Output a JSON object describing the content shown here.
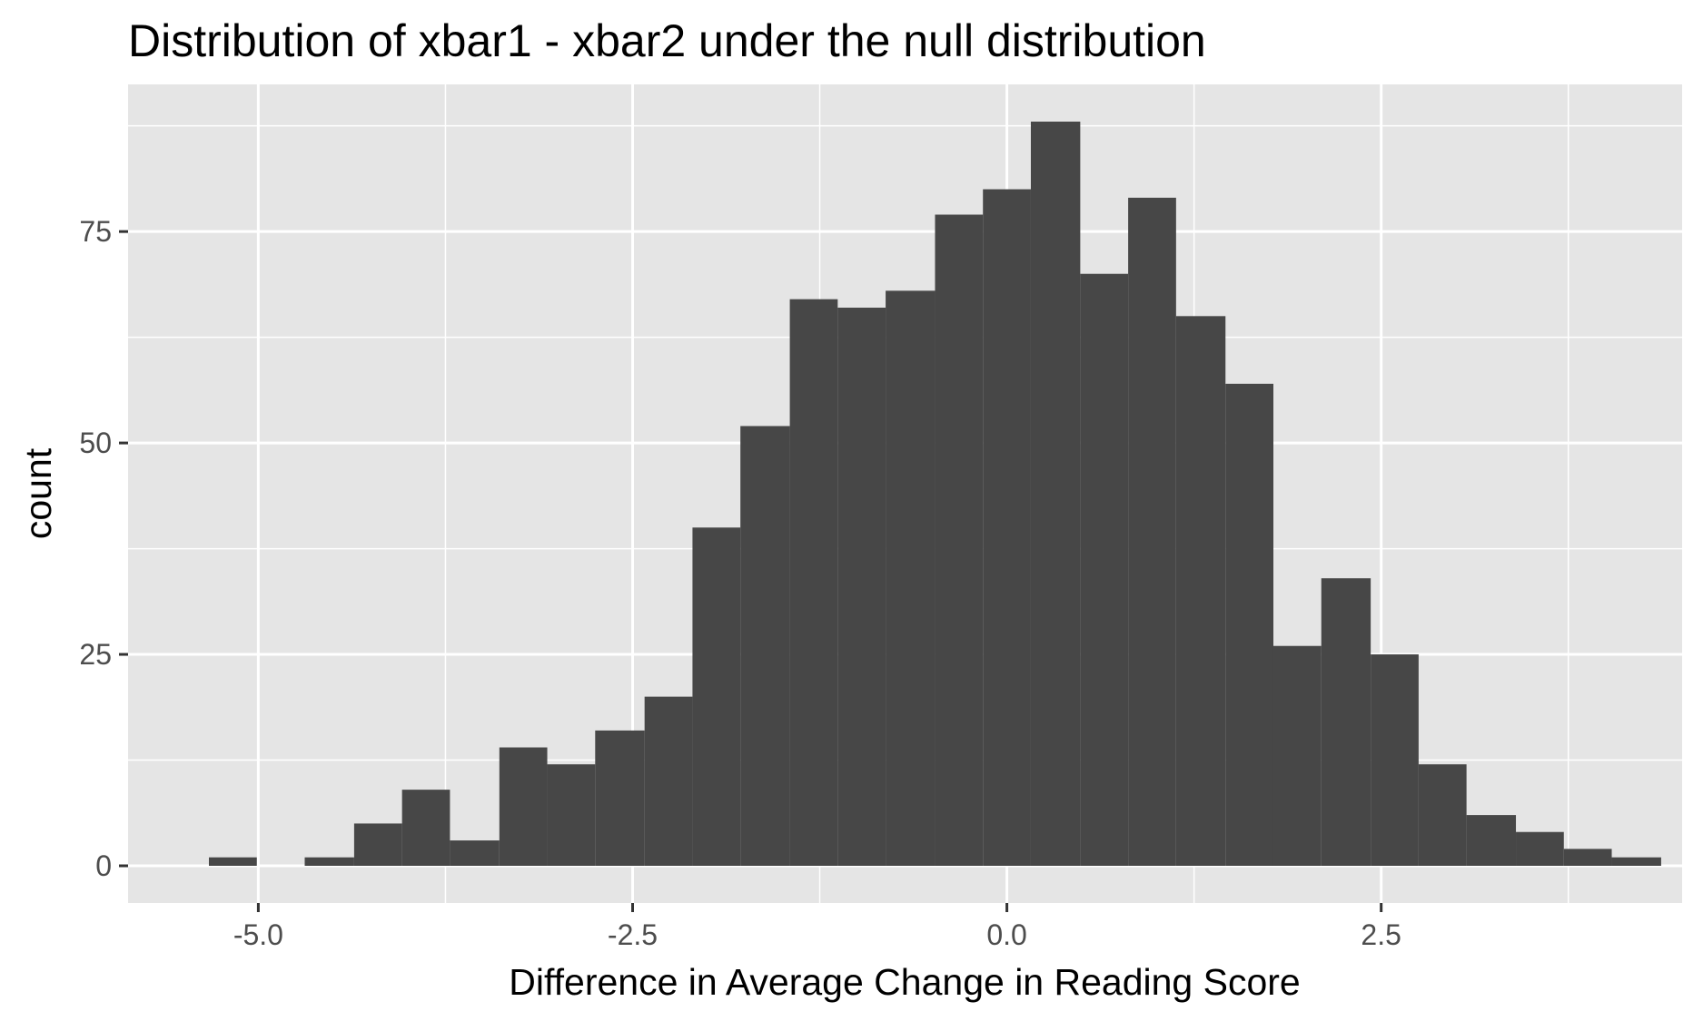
{
  "chart_data": {
    "type": "bar",
    "subtype": "histogram",
    "title": "Distribution of xbar1 - xbar2 under the null distribution",
    "xlabel": "Difference in Average Change in Reading Score",
    "ylabel": "count",
    "xlim": [
      -5.87,
      4.51
    ],
    "ylim": [
      -4.4,
      92.4
    ],
    "x_ticks": [
      -5.0,
      -2.5,
      0.0,
      2.5
    ],
    "x_tick_labels": [
      "-5.0",
      "-2.5",
      "0.0",
      "2.5"
    ],
    "y_ticks": [
      0,
      25,
      50,
      75
    ],
    "y_tick_labels": [
      "0",
      "25",
      "50",
      "75"
    ],
    "grid": true,
    "panel_background": "#e5e5e5",
    "grid_color": "#ffffff",
    "bar_color": "#474747",
    "bin_width": 0.323,
    "bins": [
      {
        "x0": -5.33,
        "x1": -5.01,
        "count": 1
      },
      {
        "x0": -5.01,
        "x1": -4.69,
        "count": 0
      },
      {
        "x0": -4.69,
        "x1": -4.36,
        "count": 1
      },
      {
        "x0": -4.36,
        "x1": -4.04,
        "count": 5
      },
      {
        "x0": -4.04,
        "x1": -3.72,
        "count": 9
      },
      {
        "x0": -3.72,
        "x1": -3.39,
        "count": 3
      },
      {
        "x0": -3.39,
        "x1": -3.07,
        "count": 14
      },
      {
        "x0": -3.07,
        "x1": -2.75,
        "count": 12
      },
      {
        "x0": -2.75,
        "x1": -2.42,
        "count": 16
      },
      {
        "x0": -2.42,
        "x1": -2.1,
        "count": 20
      },
      {
        "x0": -2.1,
        "x1": -1.78,
        "count": 40
      },
      {
        "x0": -1.78,
        "x1": -1.45,
        "count": 52
      },
      {
        "x0": -1.45,
        "x1": -1.13,
        "count": 67
      },
      {
        "x0": -1.13,
        "x1": -0.81,
        "count": 66
      },
      {
        "x0": -0.81,
        "x1": -0.48,
        "count": 68
      },
      {
        "x0": -0.48,
        "x1": -0.16,
        "count": 77
      },
      {
        "x0": -0.16,
        "x1": 0.16,
        "count": 80
      },
      {
        "x0": 0.16,
        "x1": 0.49,
        "count": 88
      },
      {
        "x0": 0.49,
        "x1": 0.81,
        "count": 70
      },
      {
        "x0": 0.81,
        "x1": 1.13,
        "count": 79
      },
      {
        "x0": 1.13,
        "x1": 1.46,
        "count": 65
      },
      {
        "x0": 1.46,
        "x1": 1.78,
        "count": 57
      },
      {
        "x0": 1.78,
        "x1": 2.1,
        "count": 26
      },
      {
        "x0": 2.1,
        "x1": 2.43,
        "count": 34
      },
      {
        "x0": 2.43,
        "x1": 2.75,
        "count": 25
      },
      {
        "x0": 2.75,
        "x1": 3.07,
        "count": 12
      },
      {
        "x0": 3.07,
        "x1": 3.4,
        "count": 6
      },
      {
        "x0": 3.4,
        "x1": 3.72,
        "count": 4
      },
      {
        "x0": 3.72,
        "x1": 4.04,
        "count": 2
      },
      {
        "x0": 4.04,
        "x1": 4.37,
        "count": 1
      }
    ]
  }
}
